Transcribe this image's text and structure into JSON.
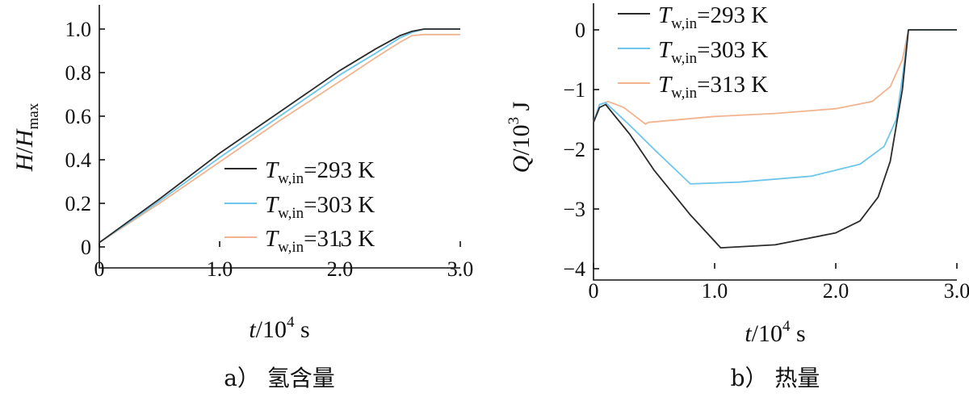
{
  "chart_data": [
    {
      "type": "line",
      "caption": "a） 氢含量",
      "ylabel_main": "H",
      "ylabel_sep": "/",
      "ylabel_denom": "H",
      "ylabel_denom_sub": "max",
      "xlabel_main": "t",
      "xlabel_rest": "/10",
      "xlabel_exp": "4",
      "xlabel_unit": " s",
      "xlim": [
        0,
        3.0
      ],
      "ylim": [
        0,
        1.0
      ],
      "xticks": [
        "0",
        "1.0",
        "2.0",
        "3.0"
      ],
      "yticks": [
        "0",
        "0.2",
        "0.4",
        "0.6",
        "0.8",
        "1.0"
      ],
      "series": [
        {
          "name_var": "T",
          "name_sub": "w,in",
          "name_val": "=293 K",
          "color": "#2b2b2b",
          "x": [
            0,
            0.5,
            1.0,
            1.5,
            2.0,
            2.3,
            2.5,
            2.6,
            2.7,
            3.0
          ],
          "y": [
            0.02,
            0.22,
            0.43,
            0.62,
            0.81,
            0.91,
            0.97,
            0.99,
            1.0,
            1.0
          ]
        },
        {
          "name_var": "T",
          "name_sub": "w,in",
          "name_val": "=303 K",
          "color": "#6ec6ea",
          "x": [
            0,
            0.5,
            1.0,
            1.5,
            2.0,
            2.3,
            2.5,
            2.6,
            2.7,
            3.0
          ],
          "y": [
            0.02,
            0.21,
            0.41,
            0.6,
            0.79,
            0.89,
            0.96,
            0.985,
            1.0,
            1.0
          ]
        },
        {
          "name_var": "T",
          "name_sub": "w,in",
          "name_val": "=313 K",
          "color": "#f2b48f",
          "x": [
            0,
            0.5,
            1.0,
            1.5,
            2.0,
            2.3,
            2.5,
            2.6,
            2.7,
            3.0
          ],
          "y": [
            0.02,
            0.2,
            0.39,
            0.58,
            0.76,
            0.87,
            0.94,
            0.97,
            0.975,
            0.975
          ]
        }
      ]
    },
    {
      "type": "line",
      "caption": "b） 热量",
      "ylabel_main": "Q",
      "ylabel_rest": "/10",
      "ylabel_exp": "3",
      "ylabel_unit": " J",
      "xlabel_main": "t",
      "xlabel_rest": "/10",
      "xlabel_exp": "4",
      "xlabel_unit": " s",
      "xlim": [
        0,
        3.0
      ],
      "ylim": [
        -4,
        0
      ],
      "xticks": [
        "0",
        "1.0",
        "2.0",
        "3.0"
      ],
      "yticks": [
        "0",
        "−1",
        "−2",
        "−3",
        "−4"
      ],
      "series": [
        {
          "name_var": "T",
          "name_sub": "w,in",
          "name_val": "=293 K",
          "color": "#2b2b2b",
          "x": [
            0,
            0.05,
            0.1,
            0.3,
            0.5,
            0.8,
            1.05,
            1.5,
            2.0,
            2.2,
            2.35,
            2.45,
            2.55,
            2.6,
            3.0
          ],
          "y": [
            -1.55,
            -1.3,
            -1.25,
            -1.75,
            -2.35,
            -3.1,
            -3.65,
            -3.6,
            -3.4,
            -3.2,
            -2.8,
            -2.2,
            -1.0,
            0,
            0
          ]
        },
        {
          "name_var": "T",
          "name_sub": "w,in",
          "name_val": "=303 K",
          "color": "#6ec6ea",
          "x": [
            0,
            0.05,
            0.1,
            0.3,
            0.5,
            0.8,
            1.2,
            1.8,
            2.2,
            2.4,
            2.5,
            2.55,
            2.6,
            3.0
          ],
          "y": [
            -1.55,
            -1.25,
            -1.22,
            -1.6,
            -2.0,
            -2.58,
            -2.55,
            -2.45,
            -2.25,
            -1.95,
            -1.5,
            -0.8,
            0,
            0
          ]
        },
        {
          "name_var": "T",
          "name_sub": "w,in",
          "name_val": "=313 K",
          "color": "#f2b48f",
          "x": [
            0,
            0.05,
            0.12,
            0.25,
            0.43,
            0.45,
            1.0,
            1.5,
            2.0,
            2.3,
            2.45,
            2.55,
            2.6,
            3.0
          ],
          "y": [
            -1.55,
            -1.25,
            -1.2,
            -1.3,
            -1.58,
            -1.55,
            -1.45,
            -1.4,
            -1.32,
            -1.2,
            -0.95,
            -0.5,
            0,
            0
          ]
        }
      ]
    }
  ]
}
